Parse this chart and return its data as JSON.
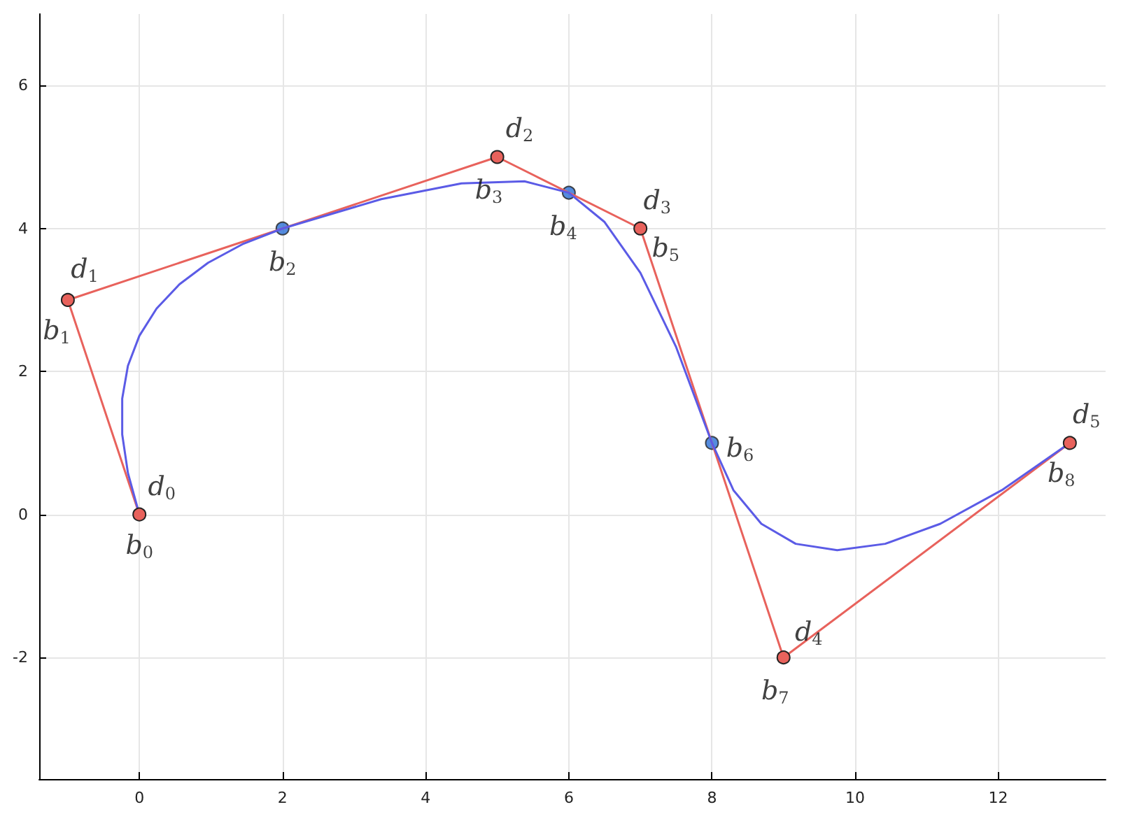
{
  "chart_data": {
    "type": "line",
    "xlim": [
      -1.4,
      13.5
    ],
    "ylim": [
      -3.7,
      7
    ],
    "xticks": [
      0,
      2,
      4,
      6,
      8,
      10,
      12
    ],
    "yticks": [
      -2,
      0,
      2,
      4,
      6
    ],
    "grid": true,
    "line_style": "solid",
    "series": [
      {
        "color": "#e8625c",
        "marker": "circle",
        "x": [
          0,
          -1,
          5,
          7,
          9,
          13
        ],
        "values": [
          0,
          3,
          5,
          4,
          -2,
          1
        ]
      },
      {
        "color": "#5b5be6",
        "marker": "none",
        "x": [
          0,
          -0.16,
          -0.24,
          -0.24,
          -0.16,
          0,
          0.24,
          0.56,
          0.96,
          1.44,
          2,
          3.38,
          4.5,
          5.38,
          6,
          6.5,
          7,
          7.5,
          8,
          8.3,
          8.69,
          9.17,
          9.75,
          10.42,
          11.19,
          12.05,
          13
        ],
        "values": [
          0,
          0.58,
          1.12,
          1.62,
          2.08,
          2.5,
          2.88,
          3.22,
          3.52,
          3.78,
          4,
          4.41,
          4.63,
          4.66,
          4.5,
          4.09,
          3.38,
          2.34,
          1,
          0.34,
          -0.13,
          -0.41,
          -0.5,
          -0.41,
          -0.13,
          0.34,
          1
        ]
      },
      {
        "type": "scatter",
        "color": "#2b6fd6",
        "marker": "circle",
        "x": [
          2,
          6,
          8
        ],
        "values": [
          4,
          4.5,
          1
        ]
      }
    ],
    "annotations": [
      {
        "text": "d$_{0}$",
        "x": 0,
        "y": 0
      },
      {
        "text": "b$_{0}$",
        "x": 0,
        "y": 0
      },
      {
        "text": "d$_{1}$",
        "x": -1,
        "y": 3
      },
      {
        "text": "b$_{1}$",
        "x": -1,
        "y": 3
      },
      {
        "text": "b$_{2}$",
        "x": 2,
        "y": 4
      },
      {
        "text": "d$_{2}$",
        "x": 5,
        "y": 5
      },
      {
        "text": "b$_{3}$",
        "x": 5,
        "y": 5
      },
      {
        "text": "b$_{4}$",
        "x": 6,
        "y": 4.5
      },
      {
        "text": "d$_{3}$",
        "x": 7,
        "y": 4
      },
      {
        "text": "b$_{5}$",
        "x": 7,
        "y": 4
      },
      {
        "text": "b$_{6}$",
        "x": 8,
        "y": 1
      },
      {
        "text": "d$_{4}$",
        "x": 9,
        "y": -2
      },
      {
        "text": "b$_{7}$",
        "x": 9,
        "y": -2
      },
      {
        "text": "d$_{5}$",
        "x": 13,
        "y": 1
      },
      {
        "text": "b$_{8}$",
        "x": 13,
        "y": 1
      }
    ]
  }
}
